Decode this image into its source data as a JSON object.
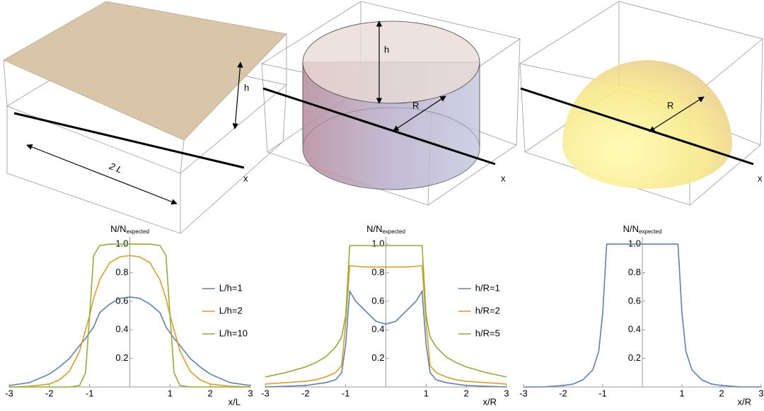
{
  "diagrams": [
    {
      "h": "h",
      "width": "2 L",
      "axis": "x"
    },
    {
      "h": "h",
      "radius": "R",
      "axis": "x"
    },
    {
      "radius": "R",
      "axis": "x"
    }
  ],
  "chart_data": [
    {
      "type": "line",
      "y_label": "N/N",
      "y_label_sub": "expected",
      "x_label": "x/L",
      "xlim": [
        -3,
        3
      ],
      "ylim": [
        0,
        1.05
      ],
      "xticks": [
        -3,
        -2,
        -1,
        1,
        2,
        3
      ],
      "yticks": [
        0.2,
        0.4,
        0.6,
        0.8,
        {
          "value": 1,
          "label": "1.0"
        }
      ],
      "x": [
        -3,
        -2.5,
        -2,
        -1.75,
        -1.5,
        -1.25,
        -1.1,
        -1,
        -0.9,
        -0.75,
        -0.5,
        -0.25,
        0,
        0.25,
        0.5,
        0.75,
        0.9,
        1,
        1.1,
        1.25,
        1.5,
        1.75,
        2,
        2.5,
        3
      ],
      "series": [
        {
          "name": "L/h=1",
          "color": "#5e81b5",
          "values": [
            0.01,
            0.03,
            0.09,
            0.14,
            0.2,
            0.29,
            0.34,
            0.38,
            0.42,
            0.52,
            0.58,
            0.62,
            0.63,
            0.62,
            0.58,
            0.52,
            0.42,
            0.38,
            0.34,
            0.29,
            0.2,
            0.14,
            0.09,
            0.03,
            0.01
          ]
        },
        {
          "name": "L/h=2",
          "color": "#e19c24",
          "values": [
            0,
            0.005,
            0.02,
            0.05,
            0.11,
            0.25,
            0.4,
            0.5,
            0.62,
            0.75,
            0.87,
            0.91,
            0.92,
            0.91,
            0.87,
            0.75,
            0.62,
            0.5,
            0.4,
            0.25,
            0.11,
            0.05,
            0.02,
            0.005,
            0
          ]
        },
        {
          "name": "L/h=10",
          "color": "#8fb032",
          "values": [
            0,
            0,
            0,
            0,
            0,
            0.01,
            0.1,
            0.5,
            0.92,
            0.99,
            1,
            1,
            1,
            1,
            1,
            0.99,
            0.92,
            0.5,
            0.1,
            0.01,
            0,
            0,
            0,
            0,
            0
          ]
        }
      ]
    },
    {
      "type": "line",
      "y_label": "N/N",
      "y_label_sub": "expected",
      "x_label": "x/R",
      "xlim": [
        -3,
        3
      ],
      "ylim": [
        0,
        1.05
      ],
      "xticks": [
        -3,
        -2,
        -1,
        1,
        2,
        3
      ],
      "yticks": [
        0.2,
        0.4,
        0.6,
        0.8,
        {
          "value": 1,
          "label": "1.0"
        }
      ],
      "x": [
        -3,
        -2.5,
        -2,
        -1.75,
        -1.5,
        -1.25,
        -1.1,
        -1,
        -0.9,
        -0.75,
        -0.5,
        -0.25,
        0,
        0.25,
        0.5,
        0.75,
        0.9,
        1,
        1.1,
        1.25,
        1.5,
        1.75,
        2,
        2.5,
        3
      ],
      "series": [
        {
          "name": "h/R=1",
          "color": "#5e81b5",
          "values": [
            0,
            0.005,
            0.01,
            0.02,
            0.03,
            0.05,
            0.1,
            0.3,
            0.67,
            0.6,
            0.53,
            0.46,
            0.44,
            0.46,
            0.53,
            0.6,
            0.67,
            0.3,
            0.1,
            0.05,
            0.03,
            0.02,
            0.01,
            0.005,
            0
          ]
        },
        {
          "name": "h/R=2",
          "color": "#e19c24",
          "values": [
            0.02,
            0.03,
            0.04,
            0.05,
            0.07,
            0.1,
            0.15,
            0.45,
            0.85,
            0.845,
            0.84,
            0.84,
            0.84,
            0.84,
            0.84,
            0.845,
            0.85,
            0.45,
            0.15,
            0.1,
            0.07,
            0.05,
            0.04,
            0.03,
            0.02
          ]
        },
        {
          "name": "h/R=5",
          "color": "#8fb032",
          "values": [
            0.07,
            0.1,
            0.14,
            0.17,
            0.21,
            0.28,
            0.35,
            0.5,
            0.99,
            0.99,
            0.99,
            0.99,
            0.99,
            0.99,
            0.99,
            0.99,
            0.99,
            0.5,
            0.35,
            0.28,
            0.21,
            0.17,
            0.14,
            0.1,
            0.07
          ]
        }
      ]
    },
    {
      "type": "line",
      "y_label": "N/N",
      "y_label_sub": "expected",
      "x_label": "x/R",
      "xlim": [
        -3,
        3
      ],
      "ylim": [
        0,
        1.05
      ],
      "xticks": [
        -3,
        -2,
        -1,
        1,
        2,
        3
      ],
      "yticks": [
        0.2,
        0.4,
        0.6,
        0.8,
        {
          "value": 1,
          "label": "1.0"
        }
      ],
      "x": [
        -3,
        -2.5,
        -2,
        -1.75,
        -1.5,
        -1.25,
        -1.1,
        -1,
        -0.9,
        -0.75,
        -0.5,
        -0.25,
        0,
        0.25,
        0.5,
        0.75,
        0.9,
        1,
        1.1,
        1.25,
        1.5,
        1.75,
        2,
        2.5,
        3
      ],
      "series": [
        {
          "color": "#5e81b5",
          "values": [
            0,
            0,
            0.01,
            0.02,
            0.05,
            0.12,
            0.25,
            0.52,
            1,
            1,
            1,
            1,
            1,
            1,
            1,
            1,
            1,
            0.52,
            0.25,
            0.12,
            0.05,
            0.02,
            0.01,
            0,
            0
          ]
        }
      ]
    }
  ]
}
